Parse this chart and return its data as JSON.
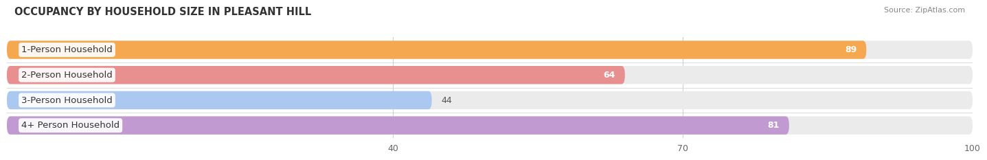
{
  "title": "OCCUPANCY BY HOUSEHOLD SIZE IN PLEASANT HILL",
  "source": "Source: ZipAtlas.com",
  "categories": [
    "1-Person Household",
    "2-Person Household",
    "3-Person Household",
    "4+ Person Household"
  ],
  "values": [
    89,
    64,
    44,
    81
  ],
  "bar_colors": [
    "#f5a850",
    "#e89090",
    "#aac8f0",
    "#c09ad0"
  ],
  "bar_bg_color": "#ebebeb",
  "xlim": [
    0,
    100
  ],
  "xticks": [
    40,
    70,
    100
  ],
  "figsize": [
    14.06,
    2.33
  ],
  "dpi": 100
}
